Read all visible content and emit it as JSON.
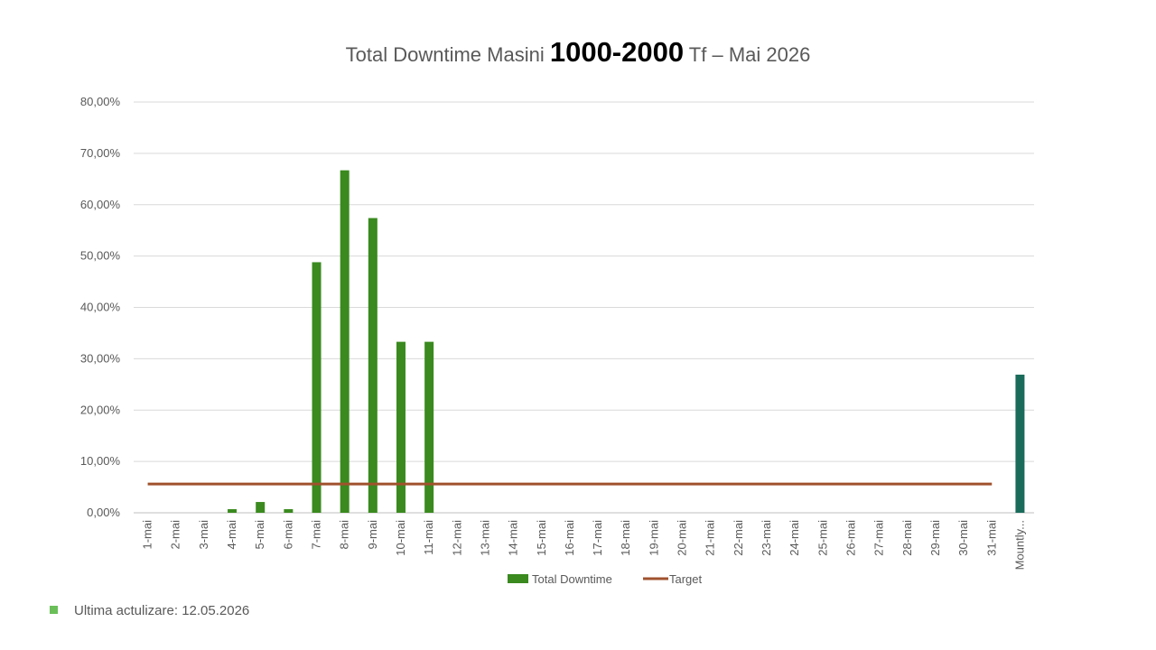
{
  "title": {
    "part1": "Total Downtime  Masini ",
    "part2": "1000-2000",
    "part3": " Tf –  Mai 2026"
  },
  "chart_data": {
    "type": "bar",
    "yticks": [
      "0,00%",
      "10,00%",
      "20,00%",
      "30,00%",
      "40,00%",
      "50,00%",
      "60,00%",
      "70,00%",
      "80,00%"
    ],
    "ylim": [
      0,
      80
    ],
    "grid": true,
    "legend_position": "bottom",
    "categories": [
      "1-mai",
      "2-mai",
      "3-mai",
      "4-mai",
      "5-mai",
      "6-mai",
      "7-mai",
      "8-mai",
      "9-mai",
      "10-mai",
      "11-mai",
      "12-mai",
      "13-mai",
      "14-mai",
      "15-mai",
      "16-mai",
      "17-mai",
      "18-mai",
      "19-mai",
      "20-mai",
      "21-mai",
      "22-mai",
      "23-mai",
      "24-mai",
      "25-mai",
      "26-mai",
      "27-mai",
      "28-mai",
      "29-mai",
      "30-mai",
      "31-mai",
      "Mountly..."
    ],
    "series": [
      {
        "name": "Total Downtime",
        "type": "bar",
        "color": "#3a8a1f",
        "values": [
          0,
          0,
          0,
          0.7,
          2.1,
          0.7,
          48.8,
          66.7,
          57.4,
          33.3,
          33.3,
          0,
          0,
          0,
          0,
          0,
          0,
          0,
          0,
          0,
          0,
          0,
          0,
          0,
          0,
          0,
          0,
          0,
          0,
          0,
          0,
          26.9
        ],
        "highlight": {
          "index": 31,
          "color": "#1a6b5a"
        }
      },
      {
        "name": "Target",
        "type": "line",
        "color": "#a0522d",
        "value": 5.6,
        "range": [
          "1-mai",
          "31-mai"
        ]
      }
    ]
  },
  "footer": {
    "text": "Ultima actulizare: 12.05.2026",
    "bullet_color": "#6abf59"
  }
}
